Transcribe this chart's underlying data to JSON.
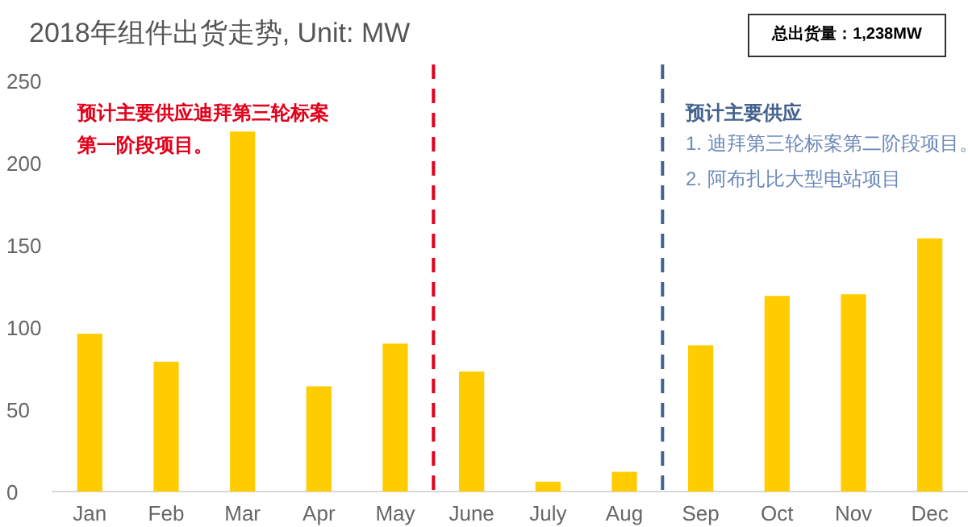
{
  "chart_data": {
    "type": "bar",
    "title": "2018年组件出货走势, Unit: MW",
    "categories": [
      "Jan",
      "Feb",
      "Mar",
      "Apr",
      "May",
      "June",
      "July",
      "Aug",
      "Sep",
      "Oct",
      "Nov",
      "Dec"
    ],
    "series": [
      {
        "color": "#ffcc00",
        "values": [
          96,
          79,
          219,
          64,
          90,
          73,
          6,
          12,
          89,
          119,
          120,
          154
        ]
      }
    ],
    "ylim": [
      0,
      250
    ],
    "yticks": [
      0,
      50,
      100,
      150,
      200,
      250
    ],
    "grid": false,
    "annotations": [
      "预计主要供应迪拜第三轮标案第一阶段项目。",
      "预计主要供应",
      "1. 迪拜第三轮标案第二阶段项目。",
      "2. 阿布扎比大型电站项目",
      "总出货量：1,238MW"
    ]
  }
}
